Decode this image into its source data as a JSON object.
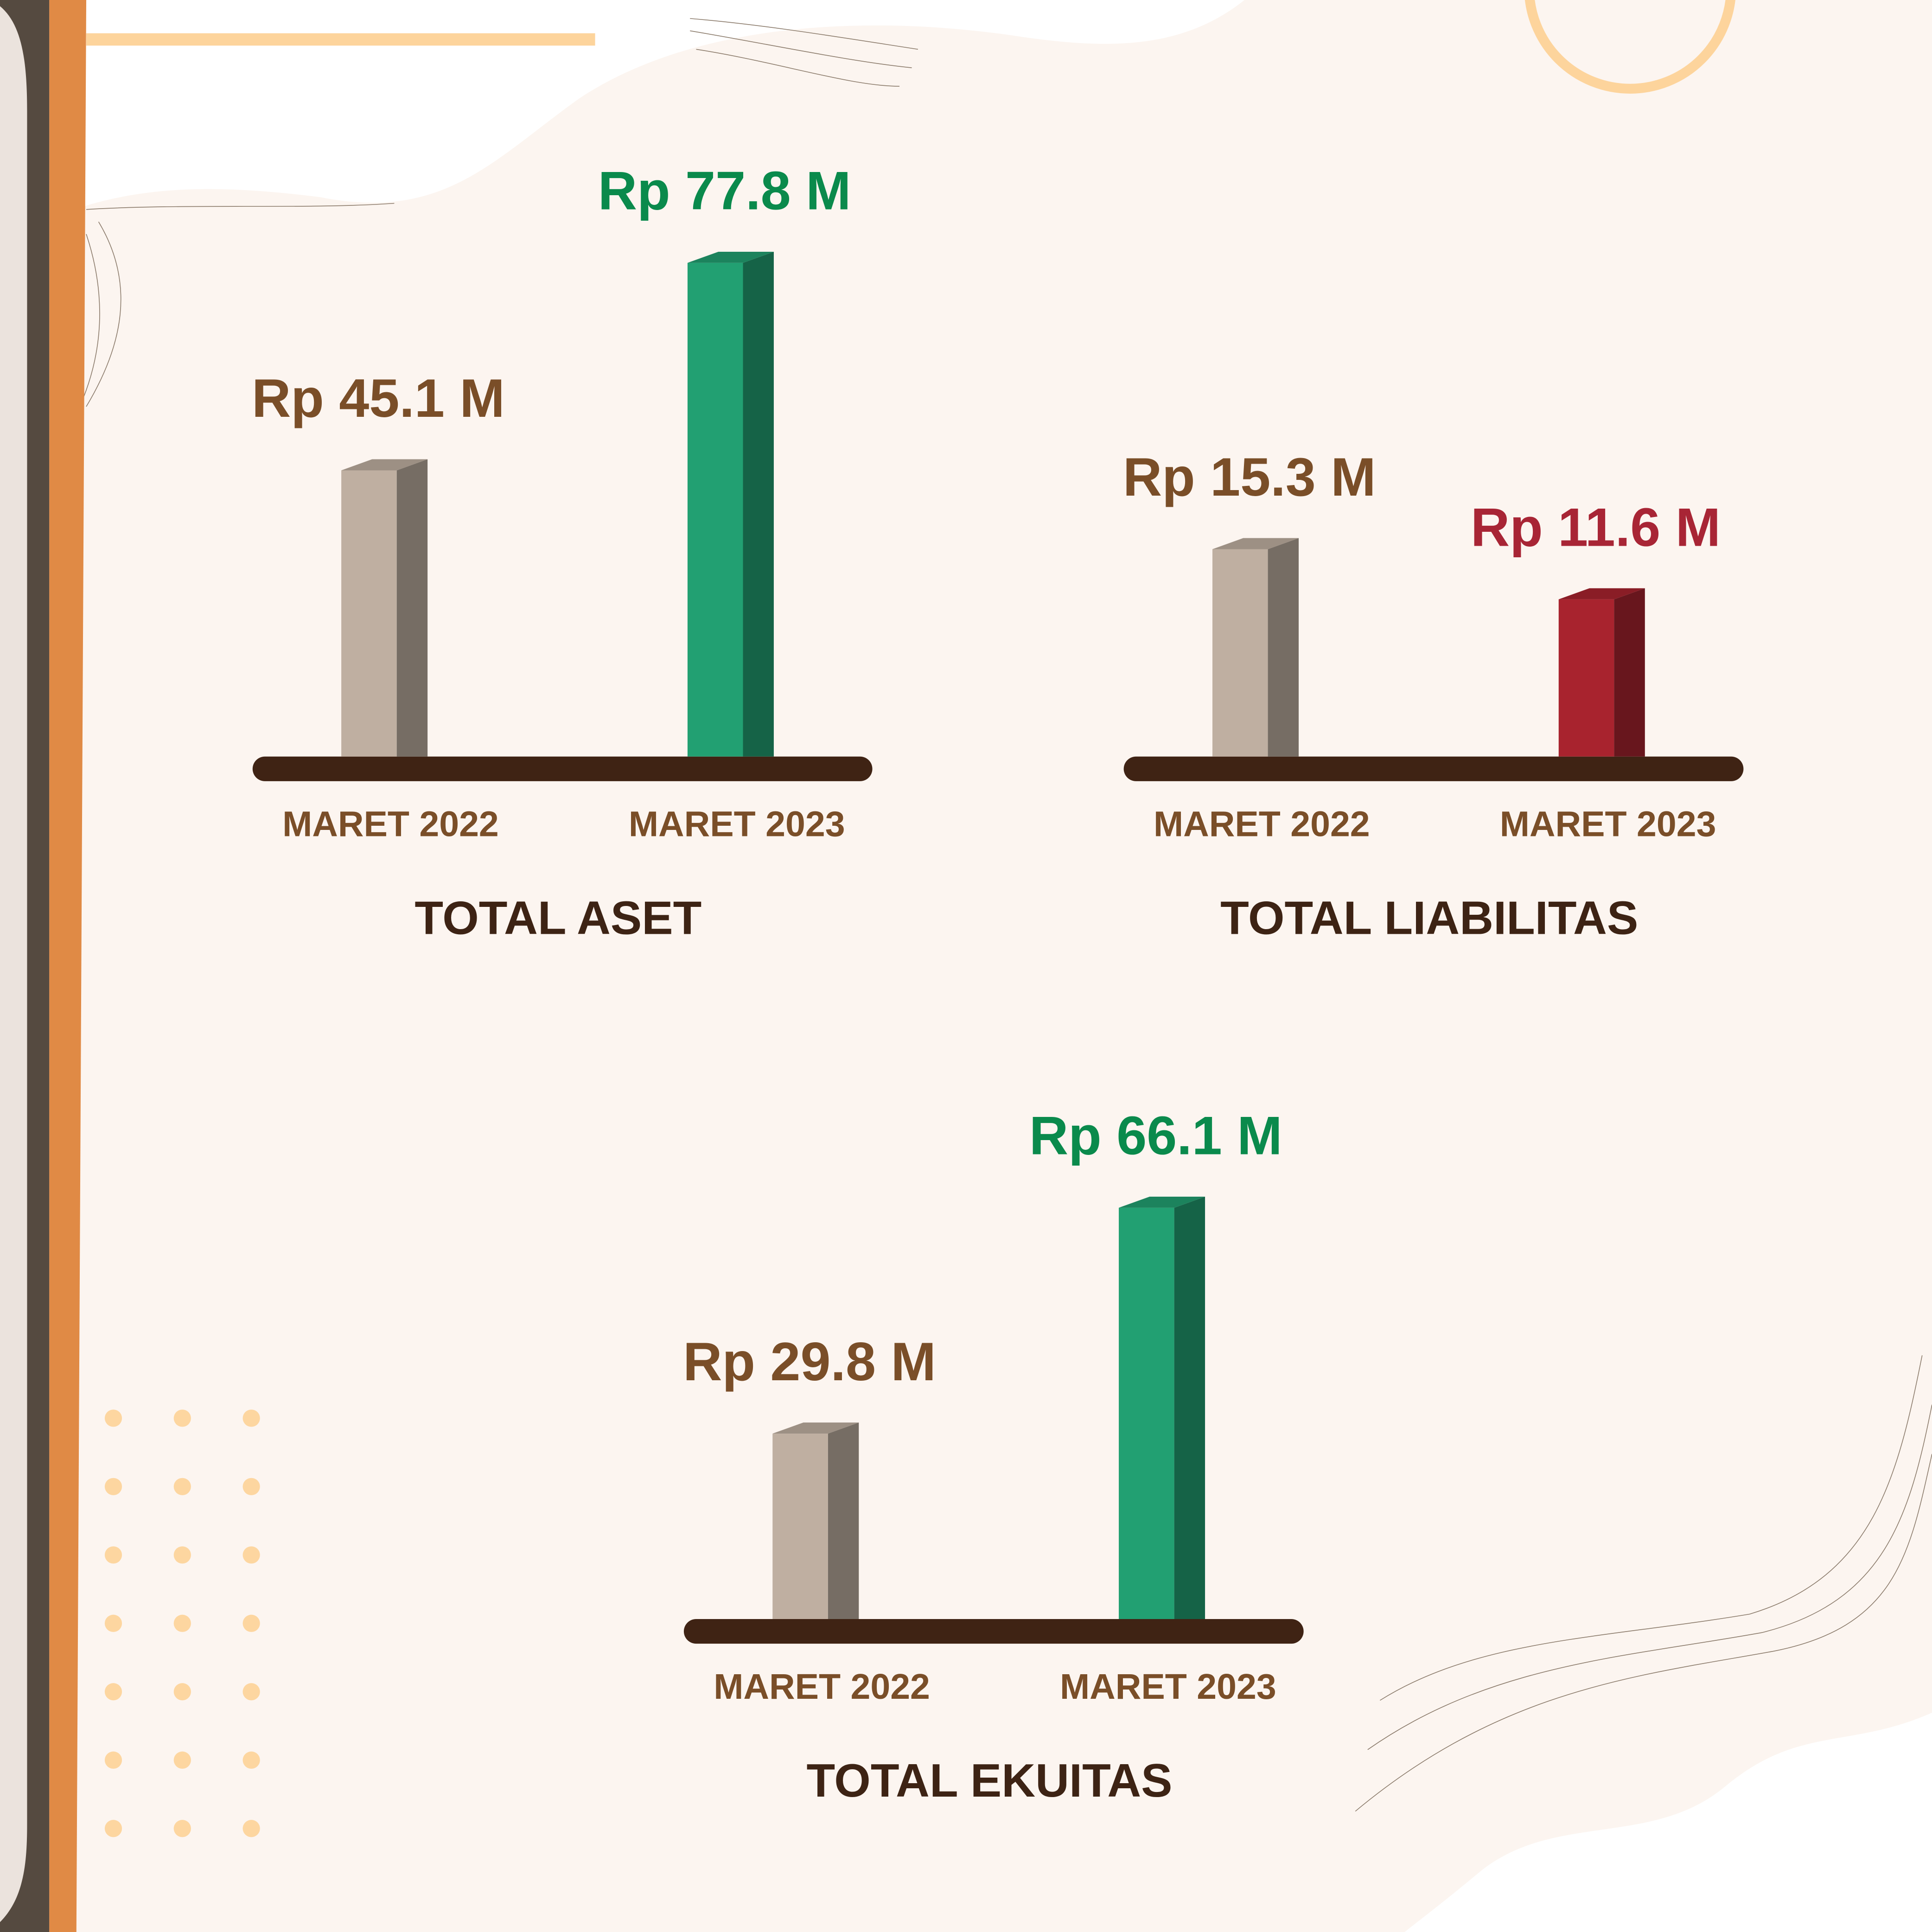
{
  "chart_data": [
    {
      "type": "bar",
      "title": "TOTAL ASET",
      "categories": [
        "MARET 2022",
        "MARET 2023"
      ],
      "values": [
        45.1,
        77.8
      ],
      "value_labels": [
        "Rp 45.1 M",
        "Rp 77.8 M"
      ],
      "colors": [
        "#bfafa1",
        "#22a072"
      ],
      "label_colors": [
        "#7a4e28",
        "#0a8a4c"
      ]
    },
    {
      "type": "bar",
      "title": "TOTAL LIABILITAS",
      "categories": [
        "MARET 2022",
        "MARET 2023"
      ],
      "values": [
        15.3,
        11.6
      ],
      "value_labels": [
        "Rp 15.3 M",
        "Rp 11.6 M"
      ],
      "colors": [
        "#bfafa1",
        "#a8232e"
      ],
      "label_colors": [
        "#7a4e28",
        "#a82535"
      ]
    },
    {
      "type": "bar",
      "title": "TOTAL EKUITAS",
      "categories": [
        "MARET 2022",
        "MARET 2023"
      ],
      "values": [
        29.8,
        66.1
      ],
      "value_labels": [
        "Rp 29.8 M",
        "Rp 66.1 M"
      ],
      "colors": [
        "#bfafa1",
        "#22a072"
      ],
      "label_colors": [
        "#7a4e28",
        "#0a8a4c"
      ]
    }
  ]
}
